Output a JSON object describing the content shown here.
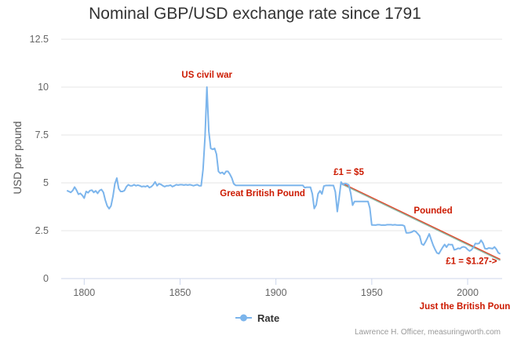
{
  "chart_data": {
    "type": "line",
    "title": "Nominal GBP/USD exchange rate since 1791",
    "ylabel": "USD per pound",
    "xlabel": "",
    "xlim": [
      1788,
      2018
    ],
    "ylim": [
      0,
      12.5
    ],
    "xticks": [
      "1800",
      "1850",
      "1900",
      "1950",
      "2000"
    ],
    "yticks": [
      "0",
      "2.5",
      "5",
      "7.5",
      "10",
      "12.5"
    ],
    "grid": "horizontal",
    "legend_position": "bottom-center",
    "series": [
      {
        "name": "Rate",
        "color": "#7cb5ec",
        "points": [
          [
            1791,
            4.6
          ],
          [
            1792,
            4.55
          ],
          [
            1793,
            4.5
          ],
          [
            1794,
            4.6
          ],
          [
            1795,
            4.78
          ],
          [
            1796,
            4.62
          ],
          [
            1797,
            4.4
          ],
          [
            1798,
            4.45
          ],
          [
            1799,
            4.35
          ],
          [
            1800,
            4.2
          ],
          [
            1801,
            4.55
          ],
          [
            1802,
            4.48
          ],
          [
            1803,
            4.6
          ],
          [
            1804,
            4.62
          ],
          [
            1805,
            4.5
          ],
          [
            1806,
            4.58
          ],
          [
            1807,
            4.45
          ],
          [
            1808,
            4.6
          ],
          [
            1809,
            4.65
          ],
          [
            1810,
            4.5
          ],
          [
            1811,
            4.1
          ],
          [
            1812,
            3.8
          ],
          [
            1813,
            3.65
          ],
          [
            1814,
            3.8
          ],
          [
            1815,
            4.3
          ],
          [
            1816,
            4.95
          ],
          [
            1817,
            5.25
          ],
          [
            1818,
            4.7
          ],
          [
            1819,
            4.55
          ],
          [
            1820,
            4.55
          ],
          [
            1821,
            4.6
          ],
          [
            1822,
            4.8
          ],
          [
            1823,
            4.9
          ],
          [
            1824,
            4.85
          ],
          [
            1825,
            4.85
          ],
          [
            1826,
            4.9
          ],
          [
            1827,
            4.85
          ],
          [
            1828,
            4.88
          ],
          [
            1829,
            4.85
          ],
          [
            1830,
            4.8
          ],
          [
            1831,
            4.82
          ],
          [
            1832,
            4.8
          ],
          [
            1833,
            4.85
          ],
          [
            1834,
            4.75
          ],
          [
            1835,
            4.8
          ],
          [
            1836,
            4.9
          ],
          [
            1837,
            5.05
          ],
          [
            1838,
            4.85
          ],
          [
            1839,
            4.95
          ],
          [
            1840,
            4.92
          ],
          [
            1841,
            4.85
          ],
          [
            1842,
            4.8
          ],
          [
            1843,
            4.85
          ],
          [
            1844,
            4.85
          ],
          [
            1845,
            4.88
          ],
          [
            1846,
            4.8
          ],
          [
            1847,
            4.85
          ],
          [
            1848,
            4.9
          ],
          [
            1849,
            4.88
          ],
          [
            1850,
            4.9
          ],
          [
            1851,
            4.9
          ],
          [
            1852,
            4.88
          ],
          [
            1853,
            4.9
          ],
          [
            1854,
            4.88
          ],
          [
            1855,
            4.9
          ],
          [
            1856,
            4.88
          ],
          [
            1857,
            4.85
          ],
          [
            1858,
            4.88
          ],
          [
            1859,
            4.9
          ],
          [
            1860,
            4.85
          ],
          [
            1861,
            4.85
          ],
          [
            1862,
            5.7
          ],
          [
            1863,
            7.4
          ],
          [
            1864,
            10.0
          ],
          [
            1865,
            7.7
          ],
          [
            1866,
            6.8
          ],
          [
            1867,
            6.75
          ],
          [
            1868,
            6.8
          ],
          [
            1869,
            6.5
          ],
          [
            1870,
            5.6
          ],
          [
            1871,
            5.5
          ],
          [
            1872,
            5.55
          ],
          [
            1873,
            5.45
          ],
          [
            1874,
            5.6
          ],
          [
            1875,
            5.6
          ],
          [
            1876,
            5.45
          ],
          [
            1877,
            5.25
          ],
          [
            1878,
            4.95
          ],
          [
            1879,
            4.87
          ],
          [
            1880,
            4.87
          ],
          [
            1885,
            4.87
          ],
          [
            1890,
            4.87
          ],
          [
            1895,
            4.87
          ],
          [
            1900,
            4.87
          ],
          [
            1905,
            4.87
          ],
          [
            1910,
            4.87
          ],
          [
            1914,
            4.87
          ],
          [
            1915,
            4.75
          ],
          [
            1916,
            4.77
          ],
          [
            1917,
            4.77
          ],
          [
            1918,
            4.77
          ],
          [
            1919,
            4.42
          ],
          [
            1920,
            3.66
          ],
          [
            1921,
            3.85
          ],
          [
            1922,
            4.43
          ],
          [
            1923,
            4.58
          ],
          [
            1924,
            4.42
          ],
          [
            1925,
            4.83
          ],
          [
            1926,
            4.86
          ],
          [
            1927,
            4.86
          ],
          [
            1928,
            4.87
          ],
          [
            1929,
            4.86
          ],
          [
            1930,
            4.86
          ],
          [
            1931,
            4.53
          ],
          [
            1932,
            3.5
          ],
          [
            1933,
            4.24
          ],
          [
            1934,
            5.04
          ],
          [
            1935,
            4.9
          ],
          [
            1936,
            4.97
          ],
          [
            1937,
            4.94
          ],
          [
            1938,
            4.89
          ],
          [
            1939,
            4.46
          ],
          [
            1940,
            3.83
          ],
          [
            1941,
            4.03
          ],
          [
            1942,
            4.03
          ],
          [
            1943,
            4.03
          ],
          [
            1944,
            4.03
          ],
          [
            1945,
            4.03
          ],
          [
            1946,
            4.03
          ],
          [
            1947,
            4.03
          ],
          [
            1948,
            4.03
          ],
          [
            1949,
            3.68
          ],
          [
            1950,
            2.8
          ],
          [
            1951,
            2.8
          ],
          [
            1952,
            2.79
          ],
          [
            1953,
            2.81
          ],
          [
            1954,
            2.81
          ],
          [
            1955,
            2.79
          ],
          [
            1956,
            2.8
          ],
          [
            1957,
            2.79
          ],
          [
            1958,
            2.81
          ],
          [
            1959,
            2.81
          ],
          [
            1960,
            2.81
          ],
          [
            1961,
            2.8
          ],
          [
            1962,
            2.81
          ],
          [
            1963,
            2.8
          ],
          [
            1964,
            2.79
          ],
          [
            1965,
            2.8
          ],
          [
            1966,
            2.79
          ],
          [
            1967,
            2.75
          ],
          [
            1968,
            2.39
          ],
          [
            1969,
            2.39
          ],
          [
            1970,
            2.4
          ],
          [
            1971,
            2.44
          ],
          [
            1972,
            2.5
          ],
          [
            1973,
            2.45
          ],
          [
            1974,
            2.34
          ],
          [
            1975,
            2.22
          ],
          [
            1976,
            1.81
          ],
          [
            1977,
            1.75
          ],
          [
            1978,
            1.92
          ],
          [
            1979,
            2.12
          ],
          [
            1980,
            2.33
          ],
          [
            1981,
            2.03
          ],
          [
            1982,
            1.75
          ],
          [
            1983,
            1.52
          ],
          [
            1984,
            1.34
          ],
          [
            1985,
            1.3
          ],
          [
            1986,
            1.47
          ],
          [
            1987,
            1.64
          ],
          [
            1988,
            1.78
          ],
          [
            1989,
            1.64
          ],
          [
            1990,
            1.79
          ],
          [
            1991,
            1.77
          ],
          [
            1992,
            1.77
          ],
          [
            1993,
            1.5
          ],
          [
            1994,
            1.53
          ],
          [
            1995,
            1.58
          ],
          [
            1996,
            1.56
          ],
          [
            1997,
            1.64
          ],
          [
            1998,
            1.66
          ],
          [
            1999,
            1.62
          ],
          [
            2000,
            1.52
          ],
          [
            2001,
            1.44
          ],
          [
            2002,
            1.5
          ],
          [
            2003,
            1.63
          ],
          [
            2004,
            1.83
          ],
          [
            2005,
            1.82
          ],
          [
            2006,
            1.84
          ],
          [
            2007,
            2.0
          ],
          [
            2008,
            1.85
          ],
          [
            2009,
            1.57
          ],
          [
            2010,
            1.55
          ],
          [
            2011,
            1.6
          ],
          [
            2012,
            1.58
          ],
          [
            2013,
            1.56
          ],
          [
            2014,
            1.65
          ],
          [
            2015,
            1.53
          ],
          [
            2016,
            1.35
          ],
          [
            2017,
            1.29
          ]
        ]
      }
    ],
    "trend_lines": [
      {
        "from": [
          1934,
          5.0
        ],
        "to": [
          2017,
          1.0
        ],
        "color": "#e83a1c"
      },
      {
        "from": [
          1934,
          4.95
        ],
        "to": [
          2017,
          0.95
        ],
        "color": "#8fb5a0"
      }
    ],
    "annotations": [
      {
        "text": "US civil war",
        "x": 1864,
        "y": 10.5
      },
      {
        "text": "Great British Pound",
        "x": 1893,
        "y": 4.3
      },
      {
        "text": "£1 = $5",
        "x": 1938,
        "y": 5.4
      },
      {
        "text": "Pounded",
        "x": 1982,
        "y": 3.4
      },
      {
        "text": "£1 = $1.27->",
        "x": 2002,
        "y": 0.75
      },
      {
        "text": "Just the British Pound",
        "x": 2000,
        "y": -1.6
      }
    ]
  },
  "legend": {
    "label": "Rate"
  },
  "credits": "Lawrence H. Officer, measuringworth.com"
}
